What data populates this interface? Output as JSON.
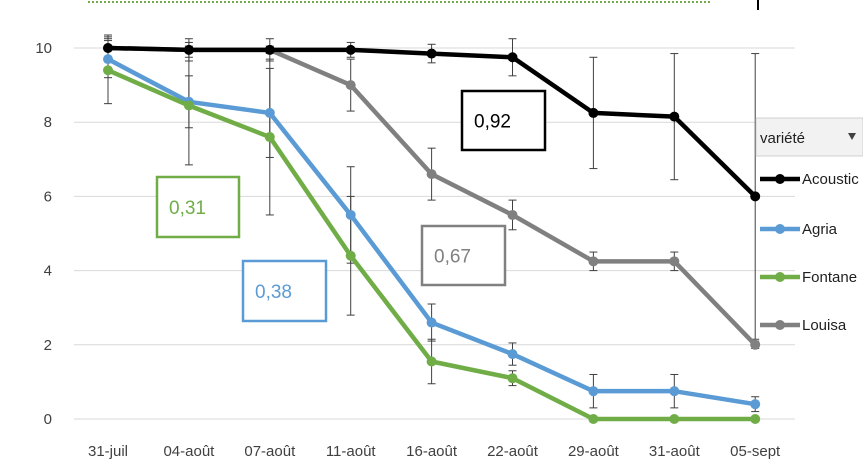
{
  "chart_data": {
    "type": "line",
    "categories": [
      "31-juil",
      "04-août",
      "07-août",
      "11-août",
      "16-août",
      "22-août",
      "29-août",
      "31-août",
      "05-sept"
    ],
    "ylim": [
      0,
      10
    ],
    "yticks": [
      "0",
      "2",
      "4",
      "6",
      "8",
      "10"
    ],
    "grid": "horizontal",
    "legend": {
      "title": "variété",
      "placement": "right",
      "dropdown_icon": "dropdown-arrow-icon"
    },
    "series": [
      {
        "name": "Acoustic",
        "color": "#000000",
        "values": [
          10,
          9.95,
          9.95,
          9.95,
          9.85,
          9.75,
          8.25,
          8.15,
          6.0
        ],
        "errors": [
          0.35,
          0.3,
          0.1,
          0.2,
          0.25,
          0.5,
          1.5,
          1.7,
          3.85
        ]
      },
      {
        "name": "Agria",
        "color": "#5b9bd5",
        "values": [
          9.7,
          8.55,
          8.25,
          5.5,
          2.6,
          1.75,
          0.75,
          0.75,
          0.4
        ],
        "errors": [
          0.5,
          0.7,
          1.2,
          1.3,
          0.5,
          0.3,
          0.45,
          0.45,
          0.2
        ]
      },
      {
        "name": "Fontane",
        "color": "#70ad47",
        "values": [
          9.4,
          8.45,
          7.6,
          4.4,
          1.55,
          1.1,
          0.0,
          0.0,
          0.0
        ],
        "errors": [
          0.9,
          1.6,
          2.1,
          1.6,
          0.6,
          0.2,
          0.05,
          0.05,
          0.05
        ]
      },
      {
        "name": "Louisa",
        "color": "#808080",
        "values": [
          10,
          9.95,
          9.95,
          9.0,
          6.6,
          5.5,
          4.25,
          4.25,
          2.0
        ],
        "errors": [
          0.25,
          0.2,
          0.3,
          0.7,
          0.7,
          0.4,
          0.25,
          0.25,
          0.1
        ]
      }
    ],
    "annotations": [
      {
        "text": "0,92",
        "color": "#000000"
      },
      {
        "text": "0,31",
        "color": "#70ad47"
      },
      {
        "text": "0,38",
        "color": "#5b9bd5"
      },
      {
        "text": "0,67",
        "color": "#808080"
      }
    ]
  }
}
